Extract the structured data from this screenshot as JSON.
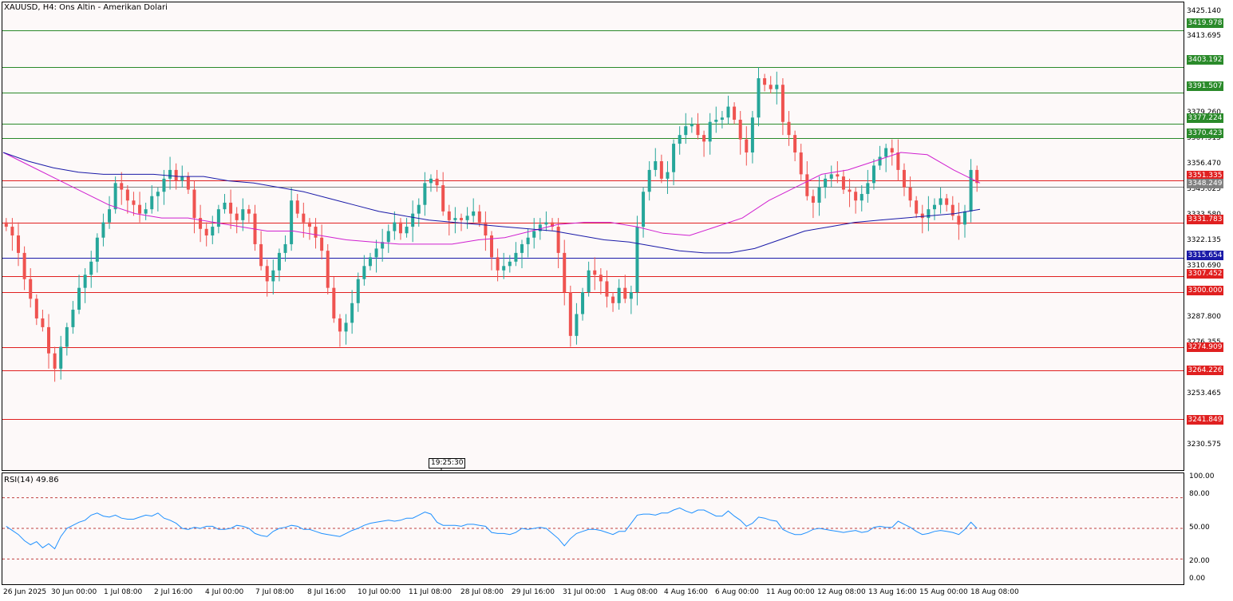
{
  "window": {
    "symbol": "XAUUSD",
    "timeframe": "H4",
    "description": "Ons Altin - Amerikan Dolari",
    "title": "XAUUSD, H4:  Ons Altin - Amerikan Dolari"
  },
  "tooltip": {
    "text": "19:25:30"
  },
  "price_axis": {
    "labels": [
      "3425.140",
      "3413.695",
      "3379.260",
      "3367.915",
      "3356.470",
      "3345.025",
      "3333.580",
      "3322.135",
      "3310.690",
      "3287.800",
      "3276.355",
      "3253.465",
      "3230.575"
    ]
  },
  "levels": [
    {
      "label": "3419.978",
      "color": "#2a8a2a"
    },
    {
      "label": "3403.192",
      "color": "#2a8a2a"
    },
    {
      "label": "3391.507",
      "color": "#2a8a2a"
    },
    {
      "label": "3377.224",
      "color": "#2a8a2a"
    },
    {
      "label": "3370.423",
      "color": "#2a8a2a"
    },
    {
      "label": "3351.335",
      "color": "#e02020"
    },
    {
      "label": "3348.249",
      "color": "#808080"
    },
    {
      "label": "3331.783",
      "color": "#e02020"
    },
    {
      "label": "3315.654",
      "color": "#1a1aa8"
    },
    {
      "label": "3307.452",
      "color": "#e02020"
    },
    {
      "label": "3300.000",
      "color": "#e02020"
    },
    {
      "label": "3274.909",
      "color": "#e02020"
    },
    {
      "label": "3264.226",
      "color": "#e02020"
    },
    {
      "label": "3241.849",
      "color": "#e02020"
    }
  ],
  "time_axis": {
    "labels": [
      "26 Jun 2025",
      "30 Jun 00:00",
      "1 Jul 08:00",
      "2 Jul 16:00",
      "4 Jul 00:00",
      "7 Jul 08:00",
      "8 Jul 16:00",
      "10 Jul 00:00",
      "11 Jul 08:00",
      "28 Jul 08:00",
      "29 Jul 16:00",
      "31 Jul 00:00",
      "1 Aug 08:00",
      "4 Aug 16:00",
      "6 Aug 00:00",
      "11 Aug 00:00",
      "12 Aug 08:00",
      "13 Aug 16:00",
      "15 Aug 00:00",
      "18 Aug 08:00"
    ]
  },
  "rsi": {
    "title": "RSI(14) 49.86",
    "levels": [
      "100.00",
      "80.00",
      "50.00",
      "20.00",
      "0.00"
    ]
  },
  "colors": {
    "bull": "#26a69a",
    "bear": "#ef5350",
    "ma_fast": "#d020d0",
    "ma_slow": "#1a1aa8",
    "rsi_line": "#1e90ff",
    "support_line": "#2a8a2a",
    "resistance_line": "#e02020"
  },
  "chart_data": {
    "type": "candlestick",
    "symbol": "XAUUSD",
    "timeframe": "H4",
    "y_range": [
      3220,
      3432
    ],
    "close_series": [
      3330,
      3326,
      3318,
      3306,
      3297,
      3288,
      3284,
      3272,
      3265,
      3275,
      3284,
      3292,
      3302,
      3308,
      3314,
      3325,
      3332,
      3338,
      3350,
      3347,
      3342,
      3340,
      3336,
      3338,
      3344,
      3346,
      3352,
      3356,
      3351,
      3353,
      3347,
      3334,
      3329,
      3326,
      3330,
      3338,
      3341,
      3336,
      3333,
      3338,
      3336,
      3322,
      3312,
      3305,
      3310,
      3318,
      3322,
      3342,
      3336,
      3332,
      3330,
      3325,
      3319,
      3302,
      3288,
      3282,
      3286,
      3295,
      3306,
      3312,
      3316,
      3320,
      3323,
      3328,
      3332,
      3327,
      3330,
      3336,
      3340,
      3350,
      3352,
      3349,
      3337,
      3333,
      3334,
      3333,
      3335,
      3337,
      3332,
      3326,
      3316,
      3310,
      3312,
      3314,
      3318,
      3322,
      3325,
      3328,
      3331,
      3332,
      3330,
      3318,
      3300,
      3280,
      3290,
      3300,
      3310,
      3308,
      3305,
      3298,
      3295,
      3302,
      3297,
      3300,
      3330,
      3346,
      3356,
      3360,
      3352,
      3355,
      3368,
      3372,
      3376,
      3377,
      3372,
      3369,
      3378,
      3379,
      3380,
      3385,
      3379,
      3370,
      3364,
      3380,
      3398,
      3395,
      3393,
      3395,
      3378,
      3372,
      3364,
      3354,
      3344,
      3341,
      3348,
      3352,
      3354,
      3353,
      3347,
      3346,
      3342,
      3345,
      3350,
      3358,
      3362,
      3366,
      3364,
      3356,
      3348,
      3342,
      3336,
      3334,
      3338,
      3340,
      3343,
      3340,
      3335,
      3331,
      3337,
      3356,
      3350
    ],
    "rsi_values": [
      52,
      48,
      44,
      38,
      34,
      37,
      31,
      35,
      30,
      42,
      50,
      53,
      56,
      58,
      63,
      65,
      62,
      61,
      63,
      60,
      59,
      59,
      61,
      63,
      62,
      65,
      60,
      58,
      55,
      50,
      49,
      51,
      50,
      52,
      52,
      49,
      49,
      50,
      53,
      52,
      50,
      45,
      43,
      42,
      47,
      50,
      51,
      53,
      52,
      49,
      49,
      47,
      45,
      44,
      43,
      42,
      45,
      48,
      50,
      53,
      55,
      56,
      57,
      58,
      57,
      58,
      60,
      60,
      63,
      66,
      64,
      56,
      53,
      53,
      53,
      52,
      54,
      54,
      53,
      52,
      46,
      45,
      45,
      44,
      46,
      50,
      49,
      50,
      51,
      50,
      45,
      40,
      33,
      40,
      45,
      47,
      49,
      49,
      48,
      46,
      44,
      47,
      47,
      55,
      63,
      64,
      64,
      63,
      65,
      65,
      68,
      70,
      67,
      65,
      68,
      68,
      65,
      62,
      62,
      67,
      62,
      58,
      52,
      55,
      61,
      60,
      58,
      57,
      49,
      46,
      44,
      44,
      46,
      49,
      50,
      49,
      48,
      47,
      46,
      47,
      48,
      46,
      47,
      51,
      52,
      51,
      51,
      57,
      54,
      51,
      47,
      44,
      45,
      47,
      48,
      47,
      46,
      44,
      49,
      56,
      50
    ],
    "ma_fast_series": [
      3364,
      3358,
      3352,
      3346,
      3340,
      3336,
      3334,
      3334,
      3332,
      3330,
      3328,
      3328,
      3326,
      3324,
      3323,
      3322,
      3322,
      3322,
      3324,
      3325,
      3328,
      3331,
      3332,
      3332,
      3330,
      3327,
      3326,
      3330,
      3334,
      3342,
      3348,
      3354,
      3356,
      3360,
      3364,
      3363,
      3356,
      3350
    ],
    "ma_slow_series": [
      3364,
      3360,
      3357,
      3355,
      3354,
      3354,
      3354,
      3353,
      3353,
      3351,
      3350,
      3348,
      3346,
      3343,
      3340,
      3337,
      3335,
      3333,
      3332,
      3331,
      3330,
      3329,
      3328,
      3326,
      3324,
      3323,
      3321,
      3319,
      3318,
      3318,
      3320,
      3324,
      3328,
      3330,
      3332,
      3333,
      3334,
      3335,
      3336,
      3338
    ]
  }
}
